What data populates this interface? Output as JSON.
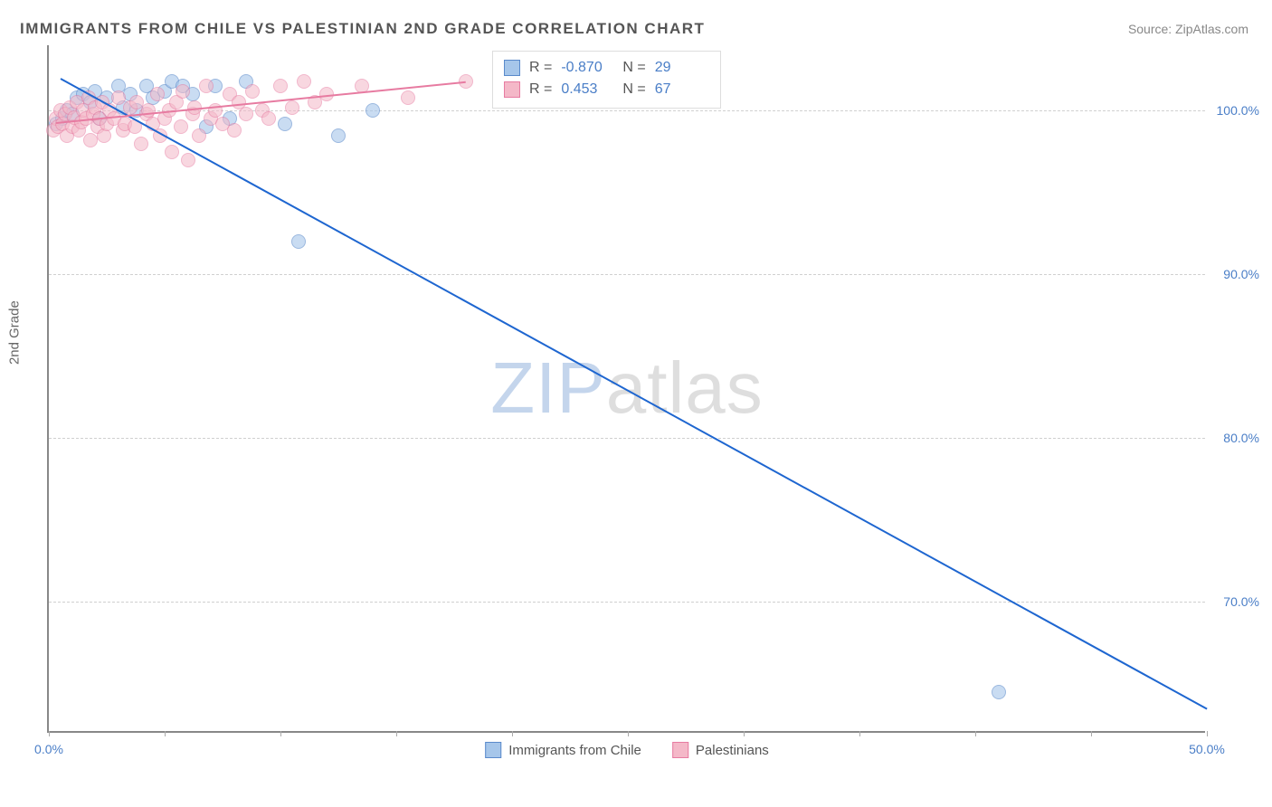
{
  "title": "IMMIGRANTS FROM CHILE VS PALESTINIAN 2ND GRADE CORRELATION CHART",
  "source": "Source: ZipAtlas.com",
  "ylabel": "2nd Grade",
  "watermark": {
    "part1": "ZIP",
    "part2": "atlas"
  },
  "chart": {
    "type": "scatter",
    "xlim": [
      0,
      50
    ],
    "ylim": [
      62,
      104
    ],
    "background_color": "#ffffff",
    "grid_color": "#d0d0d0",
    "axis_color": "#888888",
    "label_color": "#4a7ec7",
    "label_fontsize": 14,
    "yticks": [
      {
        "v": 70,
        "label": "70.0%"
      },
      {
        "v": 80,
        "label": "80.0%"
      },
      {
        "v": 90,
        "label": "90.0%"
      },
      {
        "v": 100,
        "label": "100.0%"
      }
    ],
    "xticks_minor": [
      0,
      5,
      10,
      15,
      20,
      25,
      30,
      35,
      40,
      45,
      50
    ],
    "xticks_labeled": [
      {
        "v": 0,
        "label": "0.0%"
      },
      {
        "v": 50,
        "label": "50.0%"
      }
    ],
    "series": [
      {
        "name": "Immigrants from Chile",
        "fill": "#a6c6ea",
        "stroke": "#5a8acb",
        "line_color": "#1e66d0",
        "marker_radius": 8,
        "marker_opacity": 0.6,
        "R": "-0.870",
        "N": "29",
        "trend": {
          "x1": 0.5,
          "y1": 102,
          "x2": 50,
          "y2": 63.5
        },
        "points": [
          [
            0.3,
            99.2
          ],
          [
            0.6,
            99.5
          ],
          [
            0.8,
            100.0
          ],
          [
            1.0,
            99.8
          ],
          [
            1.2,
            100.8
          ],
          [
            1.5,
            101.0
          ],
          [
            1.8,
            100.5
          ],
          [
            2.0,
            101.2
          ],
          [
            2.2,
            99.5
          ],
          [
            2.5,
            100.8
          ],
          [
            3.0,
            101.5
          ],
          [
            3.2,
            100.2
          ],
          [
            3.5,
            101.0
          ],
          [
            3.8,
            100.0
          ],
          [
            4.2,
            101.5
          ],
          [
            4.5,
            100.8
          ],
          [
            5.0,
            101.2
          ],
          [
            5.3,
            101.8
          ],
          [
            5.8,
            101.5
          ],
          [
            6.2,
            101.0
          ],
          [
            6.8,
            99.0
          ],
          [
            7.2,
            101.5
          ],
          [
            7.8,
            99.5
          ],
          [
            8.5,
            101.8
          ],
          [
            10.2,
            99.2
          ],
          [
            12.5,
            98.5
          ],
          [
            14.0,
            100.0
          ],
          [
            10.8,
            92.0
          ],
          [
            41.0,
            64.5
          ]
        ]
      },
      {
        "name": "Palestinians",
        "fill": "#f4b8c8",
        "stroke": "#e77ba1",
        "line_color": "#e77ba1",
        "marker_radius": 8,
        "marker_opacity": 0.55,
        "R": "0.453",
        "N": "67",
        "trend": {
          "x1": 0.3,
          "y1": 99.3,
          "x2": 18,
          "y2": 101.8
        },
        "points": [
          [
            0.2,
            98.8
          ],
          [
            0.3,
            99.5
          ],
          [
            0.4,
            99.0
          ],
          [
            0.5,
            100.0
          ],
          [
            0.6,
            99.2
          ],
          [
            0.7,
            99.8
          ],
          [
            0.8,
            98.5
          ],
          [
            0.9,
            100.2
          ],
          [
            1.0,
            99.0
          ],
          [
            1.1,
            99.6
          ],
          [
            1.2,
            100.5
          ],
          [
            1.3,
            98.8
          ],
          [
            1.4,
            99.3
          ],
          [
            1.5,
            100.0
          ],
          [
            1.6,
            99.5
          ],
          [
            1.7,
            100.8
          ],
          [
            1.8,
            98.2
          ],
          [
            1.9,
            99.8
          ],
          [
            2.0,
            100.2
          ],
          [
            2.1,
            99.0
          ],
          [
            2.2,
            99.5
          ],
          [
            2.3,
            100.5
          ],
          [
            2.4,
            98.5
          ],
          [
            2.5,
            99.2
          ],
          [
            2.6,
            100.0
          ],
          [
            2.8,
            99.5
          ],
          [
            3.0,
            100.8
          ],
          [
            3.2,
            98.8
          ],
          [
            3.3,
            99.2
          ],
          [
            3.5,
            100.2
          ],
          [
            3.7,
            99.0
          ],
          [
            3.8,
            100.5
          ],
          [
            4.0,
            98.0
          ],
          [
            4.2,
            99.8
          ],
          [
            4.3,
            100.0
          ],
          [
            4.5,
            99.2
          ],
          [
            4.7,
            101.0
          ],
          [
            4.8,
            98.5
          ],
          [
            5.0,
            99.5
          ],
          [
            5.2,
            100.0
          ],
          [
            5.3,
            97.5
          ],
          [
            5.5,
            100.5
          ],
          [
            5.7,
            99.0
          ],
          [
            5.8,
            101.2
          ],
          [
            6.0,
            97.0
          ],
          [
            6.2,
            99.8
          ],
          [
            6.3,
            100.2
          ],
          [
            6.5,
            98.5
          ],
          [
            6.8,
            101.5
          ],
          [
            7.0,
            99.5
          ],
          [
            7.2,
            100.0
          ],
          [
            7.5,
            99.2
          ],
          [
            7.8,
            101.0
          ],
          [
            8.0,
            98.8
          ],
          [
            8.2,
            100.5
          ],
          [
            8.5,
            99.8
          ],
          [
            8.8,
            101.2
          ],
          [
            9.2,
            100.0
          ],
          [
            9.5,
            99.5
          ],
          [
            10.0,
            101.5
          ],
          [
            10.5,
            100.2
          ],
          [
            11.0,
            101.8
          ],
          [
            11.5,
            100.5
          ],
          [
            12.0,
            101.0
          ],
          [
            13.5,
            101.5
          ],
          [
            15.5,
            100.8
          ],
          [
            18.0,
            101.8
          ]
        ]
      }
    ]
  },
  "stats_legend": {
    "R_label": "R =",
    "N_label": "N ="
  },
  "bottom_legend": [
    {
      "label": "Immigrants from Chile",
      "fill": "#a6c6ea",
      "stroke": "#5a8acb"
    },
    {
      "label": "Palestinians",
      "fill": "#f4b8c8",
      "stroke": "#e77ba1"
    }
  ]
}
